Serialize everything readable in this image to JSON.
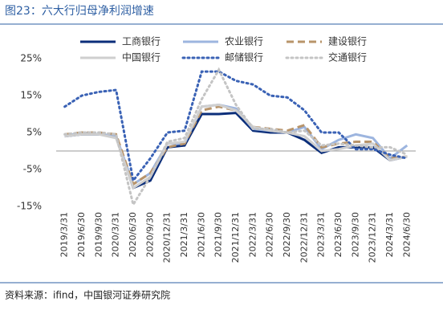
{
  "chart_data": {
    "type": "line",
    "title": "图23：六大行归母净利润增速",
    "source": "资料来源：ifind，中国银河证券研究院",
    "categories": [
      "2019/3/31",
      "2019/6/30",
      "2019/9/30",
      "2020/3/31",
      "2020/6/30",
      "2020/9/30",
      "2020/12/31",
      "2021/3/31",
      "2021/6/30",
      "2021/9/30",
      "2021/12/31",
      "2022/3/31",
      "2022/6/30",
      "2022/9/30",
      "2022/12/31",
      "2023/3/31",
      "2023/6/30",
      "2023/9/30",
      "2023/12/31",
      "2024/3/31",
      "2024/6/30"
    ],
    "series": [
      {
        "name": "工商银行",
        "color": "#0b2e7a",
        "line_style": "solid",
        "values": [
          4,
          4.5,
          4.5,
          4,
          -10,
          -8,
          1,
          1.5,
          10,
          10,
          10.3,
          5.5,
          5,
          5,
          3,
          -0.5,
          1,
          1,
          1,
          -2.5,
          -1.5
        ]
      },
      {
        "name": "农业银行",
        "color": "#9db5df",
        "line_style": "solid",
        "values": [
          4,
          5,
          4.5,
          4,
          -9,
          -6,
          2,
          2,
          12,
          12.5,
          11.5,
          6,
          5.5,
          5,
          6.5,
          0.5,
          3,
          4.5,
          3.5,
          -2,
          1.5
        ]
      },
      {
        "name": "建设银行",
        "color": "#b8946a",
        "line_style": "dashed",
        "values": [
          4.5,
          5,
          5,
          4.5,
          -9,
          -6,
          1,
          2,
          11,
          12,
          11,
          6.5,
          6,
          5.5,
          7,
          1,
          2,
          2.5,
          2.5,
          -2,
          -1.5
        ]
      },
      {
        "name": "中国银行",
        "color": "#cfcfcf",
        "line_style": "solid",
        "values": [
          4,
          4.5,
          4.5,
          3.5,
          -10,
          -7,
          2,
          2.5,
          12,
          12.5,
          11,
          6.5,
          5.5,
          5,
          4,
          0,
          0.5,
          1.5,
          2,
          -2.5,
          -1.5
        ]
      },
      {
        "name": "邮储银行",
        "color": "#3a62b5",
        "line_style": "dotted",
        "values": [
          12,
          15,
          16,
          16.5,
          -8,
          -2,
          5,
          5.5,
          21.5,
          21.5,
          19,
          18,
          15,
          14.5,
          11,
          5,
          5,
          0.5,
          0.5,
          -1,
          -2
        ]
      },
      {
        "name": "交通银行",
        "color": "#c4c4c4",
        "line_style": "dotted",
        "values": [
          4.5,
          5,
          5,
          4.5,
          -14.5,
          -7,
          2.5,
          3.5,
          14,
          22,
          12.5,
          6,
          6,
          5,
          5.5,
          1.5,
          2,
          1.5,
          1,
          1,
          -1
        ]
      }
    ],
    "ylim": [
      -15,
      25
    ],
    "yticks": [
      {
        "value": 25,
        "label": "25%"
      },
      {
        "value": 15,
        "label": "15%"
      },
      {
        "value": 5,
        "label": "5%"
      },
      {
        "value": -5,
        "label": "-5%"
      },
      {
        "value": -15,
        "label": "-15%"
      }
    ],
    "grid": false
  }
}
